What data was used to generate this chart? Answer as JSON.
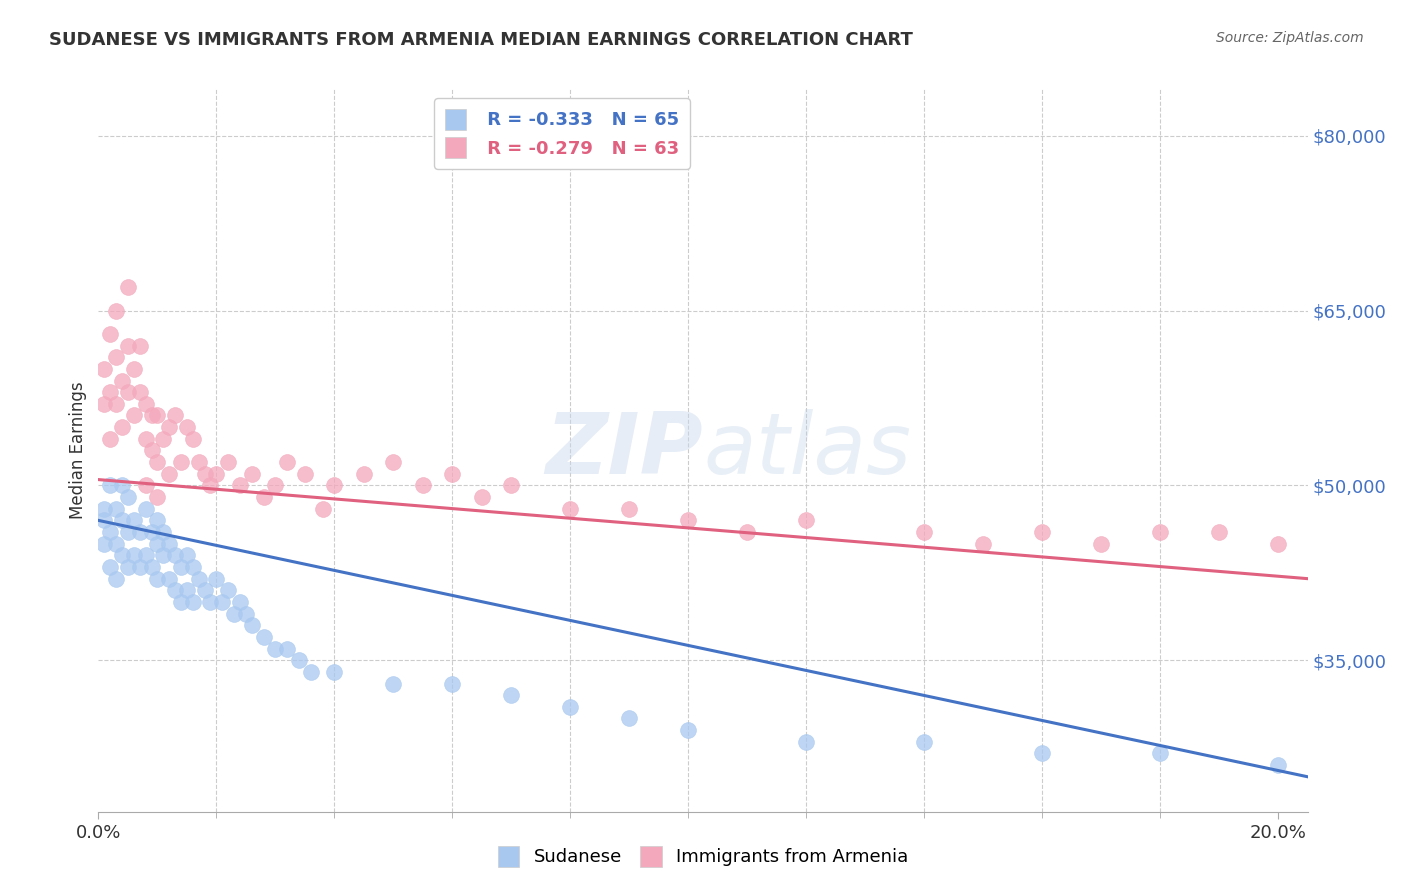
{
  "title": "SUDANESE VS IMMIGRANTS FROM ARMENIA MEDIAN EARNINGS CORRELATION CHART",
  "source": "Source: ZipAtlas.com",
  "ylabel": "Median Earnings",
  "xlim": [
    0.0,
    0.205
  ],
  "ylim": [
    22000,
    84000
  ],
  "yticks": [
    35000,
    50000,
    65000,
    80000
  ],
  "ytick_labels": [
    "$35,000",
    "$50,000",
    "$65,000",
    "$80,000"
  ],
  "xtick_labels": [
    "0.0%",
    "20.0%"
  ],
  "series1_color": "#a8c8f0",
  "series2_color": "#f4a8bc",
  "line1_color": "#4472c4",
  "line2_color": "#e06080",
  "series1_label": "Sudanese",
  "series2_label": "Immigrants from Armenia",
  "R1": "-0.333",
  "N1": "65",
  "R2": "-0.279",
  "N2": "63",
  "watermark": "ZIPatlas",
  "background_color": "#ffffff",
  "grid_color": "#cccccc",
  "line1_x0": 0.0,
  "line1_y0": 47000,
  "line1_x1": 0.205,
  "line1_y1": 25000,
  "line2_x0": 0.0,
  "line2_y0": 50500,
  "line2_x1": 0.205,
  "line2_y1": 42000,
  "series1_x": [
    0.001,
    0.001,
    0.001,
    0.002,
    0.002,
    0.002,
    0.003,
    0.003,
    0.003,
    0.004,
    0.004,
    0.004,
    0.005,
    0.005,
    0.005,
    0.006,
    0.006,
    0.007,
    0.007,
    0.008,
    0.008,
    0.009,
    0.009,
    0.01,
    0.01,
    0.01,
    0.011,
    0.011,
    0.012,
    0.012,
    0.013,
    0.013,
    0.014,
    0.014,
    0.015,
    0.015,
    0.016,
    0.016,
    0.017,
    0.018,
    0.019,
    0.02,
    0.021,
    0.022,
    0.023,
    0.024,
    0.025,
    0.026,
    0.028,
    0.03,
    0.032,
    0.034,
    0.036,
    0.04,
    0.05,
    0.06,
    0.07,
    0.08,
    0.09,
    0.1,
    0.12,
    0.14,
    0.16,
    0.18,
    0.2
  ],
  "series1_y": [
    48000,
    47000,
    45000,
    50000,
    46000,
    43000,
    48000,
    45000,
    42000,
    50000,
    47000,
    44000,
    49000,
    46000,
    43000,
    47000,
    44000,
    46000,
    43000,
    48000,
    44000,
    46000,
    43000,
    47000,
    45000,
    42000,
    46000,
    44000,
    45000,
    42000,
    44000,
    41000,
    43000,
    40000,
    44000,
    41000,
    43000,
    40000,
    42000,
    41000,
    40000,
    42000,
    40000,
    41000,
    39000,
    40000,
    39000,
    38000,
    37000,
    36000,
    36000,
    35000,
    34000,
    34000,
    33000,
    33000,
    32000,
    31000,
    30000,
    29000,
    28000,
    28000,
    27000,
    27000,
    26000
  ],
  "series2_x": [
    0.001,
    0.001,
    0.002,
    0.002,
    0.002,
    0.003,
    0.003,
    0.003,
    0.004,
    0.004,
    0.005,
    0.005,
    0.005,
    0.006,
    0.006,
    0.007,
    0.007,
    0.008,
    0.008,
    0.009,
    0.009,
    0.01,
    0.01,
    0.011,
    0.012,
    0.013,
    0.014,
    0.015,
    0.016,
    0.017,
    0.018,
    0.019,
    0.02,
    0.022,
    0.024,
    0.026,
    0.028,
    0.03,
    0.032,
    0.035,
    0.038,
    0.04,
    0.045,
    0.05,
    0.055,
    0.06,
    0.065,
    0.07,
    0.08,
    0.09,
    0.1,
    0.11,
    0.12,
    0.14,
    0.15,
    0.16,
    0.17,
    0.18,
    0.19,
    0.2,
    0.008,
    0.01,
    0.012
  ],
  "series2_y": [
    60000,
    57000,
    63000,
    58000,
    54000,
    65000,
    61000,
    57000,
    59000,
    55000,
    67000,
    62000,
    58000,
    60000,
    56000,
    62000,
    58000,
    57000,
    54000,
    56000,
    53000,
    56000,
    52000,
    54000,
    55000,
    56000,
    52000,
    55000,
    54000,
    52000,
    51000,
    50000,
    51000,
    52000,
    50000,
    51000,
    49000,
    50000,
    52000,
    51000,
    48000,
    50000,
    51000,
    52000,
    50000,
    51000,
    49000,
    50000,
    48000,
    48000,
    47000,
    46000,
    47000,
    46000,
    45000,
    46000,
    45000,
    46000,
    46000,
    45000,
    50000,
    49000,
    51000
  ]
}
